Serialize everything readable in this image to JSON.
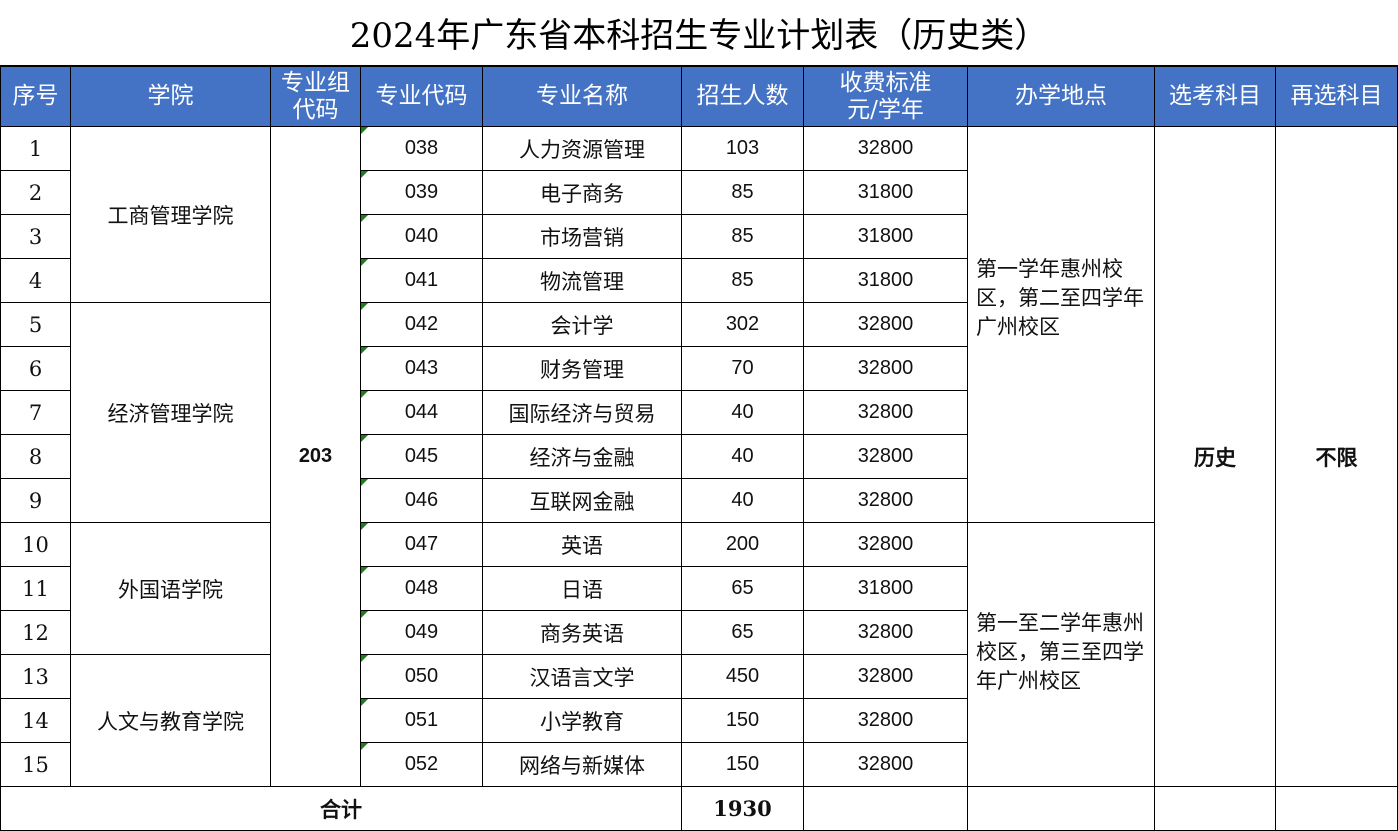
{
  "title": "2024年广东省本科招生专业计划表（历史类）",
  "colors": {
    "header_bg": "#4472C4",
    "header_text": "#FFFFFF",
    "comment_marker": "#1A7F1A"
  },
  "headers": [
    "序号",
    "学院",
    "专业组代码",
    "专业代码",
    "专业名称",
    "招生人数",
    "收费标准元/学年",
    "办学地点",
    "选考科目",
    "再选科目"
  ],
  "header_lines": {
    "group_code": [
      "专业组",
      "代码"
    ],
    "fee": [
      "收费标准",
      "元/学年"
    ]
  },
  "group_code": "203",
  "subject": "历史",
  "reselect": "不限",
  "colleges": [
    {
      "name": "工商管理学院",
      "rows": 4
    },
    {
      "name": "经济管理学院",
      "rows": 5
    },
    {
      "name": "外国语学院",
      "rows": 3
    },
    {
      "name": "人文与教育学院",
      "rows": 3
    }
  ],
  "locations": [
    {
      "text": "第一学年惠州校区，第二至四学年广州校区",
      "rows": 9
    },
    {
      "text": "第一至二学年惠州校区，第三至四学年广州校区",
      "rows": 6
    }
  ],
  "rows": [
    {
      "no": "1",
      "code": "038",
      "major": "人力资源管理",
      "count": "103",
      "fee": "32800"
    },
    {
      "no": "2",
      "code": "039",
      "major": "电子商务",
      "count": "85",
      "fee": "31800"
    },
    {
      "no": "3",
      "code": "040",
      "major": "市场营销",
      "count": "85",
      "fee": "31800"
    },
    {
      "no": "4",
      "code": "041",
      "major": "物流管理",
      "count": "85",
      "fee": "31800"
    },
    {
      "no": "5",
      "code": "042",
      "major": "会计学",
      "count": "302",
      "fee": "32800"
    },
    {
      "no": "6",
      "code": "043",
      "major": "财务管理",
      "count": "70",
      "fee": "32800"
    },
    {
      "no": "7",
      "code": "044",
      "major": "国际经济与贸易",
      "count": "40",
      "fee": "32800"
    },
    {
      "no": "8",
      "code": "045",
      "major": "经济与金融",
      "count": "40",
      "fee": "32800"
    },
    {
      "no": "9",
      "code": "046",
      "major": "互联网金融",
      "count": "40",
      "fee": "32800"
    },
    {
      "no": "10",
      "code": "047",
      "major": "英语",
      "count": "200",
      "fee": "32800"
    },
    {
      "no": "11",
      "code": "048",
      "major": "日语",
      "count": "65",
      "fee": "31800"
    },
    {
      "no": "12",
      "code": "049",
      "major": "商务英语",
      "count": "65",
      "fee": "32800"
    },
    {
      "no": "13",
      "code": "050",
      "major": "汉语言文学",
      "count": "450",
      "fee": "32800"
    },
    {
      "no": "14",
      "code": "051",
      "major": "小学教育",
      "count": "150",
      "fee": "32800"
    },
    {
      "no": "15",
      "code": "052",
      "major": "网络与新媒体",
      "count": "150",
      "fee": "32800"
    }
  ],
  "total": {
    "label": "合计",
    "count": "1930"
  }
}
